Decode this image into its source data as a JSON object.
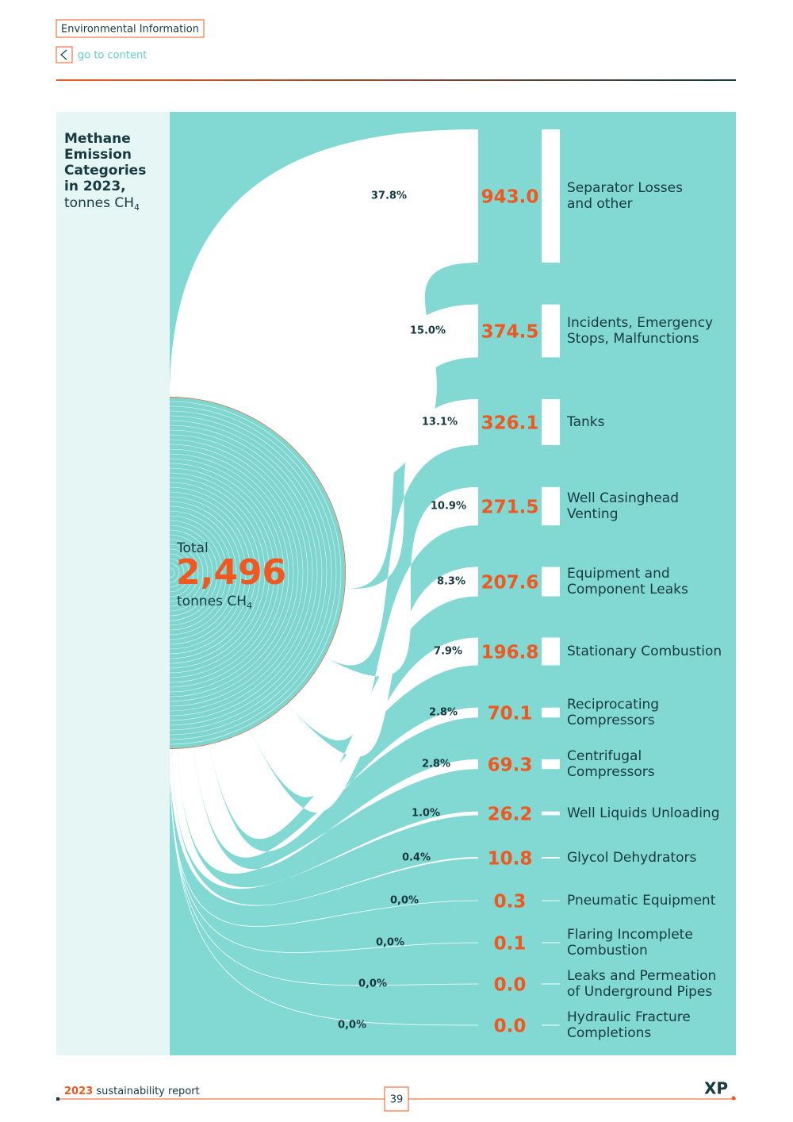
{
  "header": {
    "section": "Environmental Information",
    "back": "go to content"
  },
  "chart": {
    "type": "sankey",
    "title_lines": [
      "Methane",
      "Emission",
      "Categories",
      "in 2023,"
    ],
    "unit": "tonnes CH",
    "unit_sub": "4",
    "total_label": "Total",
    "total": "2,496",
    "items": [
      {
        "share": "37.8%",
        "value": "943.0",
        "name": [
          "Separator Losses",
          "and other"
        ]
      },
      {
        "share": "15.0%",
        "value": "374.5",
        "name": [
          "Incidents, Emergency",
          "Stops, Malfunctions"
        ]
      },
      {
        "share": "13.1%",
        "value": "326.1",
        "name": [
          "Tanks"
        ]
      },
      {
        "share": "10.9%",
        "value": "271.5",
        "name": [
          "Well Casinghead",
          "Venting"
        ]
      },
      {
        "share": "8.3%",
        "value": "207.6",
        "name": [
          "Equipment and",
          "Component Leaks"
        ]
      },
      {
        "share": "7.9%",
        "value": "196.8",
        "name": [
          "Stationary Combustion"
        ]
      },
      {
        "share": "2.8%",
        "value": "70.1",
        "name": [
          "Reciprocating",
          "Compressors"
        ]
      },
      {
        "share": "2.8%",
        "value": "69.3",
        "name": [
          "Centrifugal",
          "Compressors"
        ]
      },
      {
        "share": "1.0%",
        "value": "26.2",
        "name": [
          "Well Liquids Unloading"
        ]
      },
      {
        "share": "0.4%",
        "value": "10.8",
        "name": [
          "Glycol Dehydrators"
        ]
      },
      {
        "share": "0,0%",
        "value": "0.3",
        "name": [
          "Pneumatic Equipment"
        ]
      },
      {
        "share": "0,0%",
        "value": "0.1",
        "name": [
          "Flaring Incomplete",
          "Combustion"
        ]
      },
      {
        "share": "0,0%",
        "value": "0.0",
        "name": [
          "Leaks and Permeation",
          "of Underground Pipes"
        ]
      },
      {
        "share": "0,0%",
        "value": "0.0",
        "name": [
          "Hydraulic Fracture",
          "Completions"
        ]
      }
    ]
  },
  "footer": {
    "year": "2023",
    "report": "sustainability report",
    "page": "39",
    "logo": "XP"
  }
}
